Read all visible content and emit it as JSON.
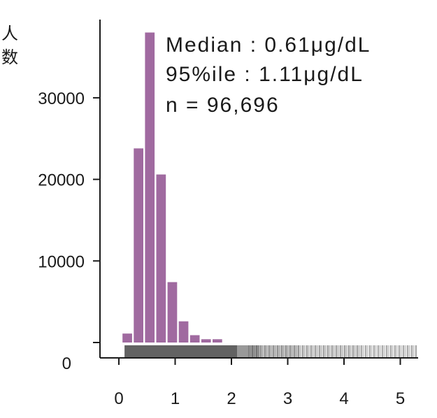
{
  "chart_data": {
    "type": "bar",
    "ylabel_lines": [
      "人",
      "数"
    ],
    "xlabel": "",
    "title": "",
    "x_ticks": [
      0,
      1,
      2,
      3,
      4,
      5
    ],
    "y_ticks": [
      0,
      10000,
      20000,
      30000
    ],
    "xlim": [
      -0.05,
      5.3
    ],
    "ylim": [
      -2000,
      40000
    ],
    "bar_width": 0.2,
    "bar_color": "#a06aa0",
    "bins": [
      {
        "x": 0.15,
        "value": 1100
      },
      {
        "x": 0.35,
        "value": 23800
      },
      {
        "x": 0.55,
        "value": 38000
      },
      {
        "x": 0.75,
        "value": 20600
      },
      {
        "x": 0.95,
        "value": 7400
      },
      {
        "x": 1.15,
        "value": 2600
      },
      {
        "x": 1.35,
        "value": 900
      },
      {
        "x": 1.55,
        "value": 400
      },
      {
        "x": 1.75,
        "value": 400
      }
    ],
    "annotations": [
      "Median : 0.61μg/dL",
      "95%ile : 1.11μg/dL",
      "n = 96,696"
    ],
    "rug": {
      "color": "#555555",
      "from": 0.1,
      "to": 5.3,
      "segments": [
        {
          "from": 0.1,
          "to": 2.1,
          "opacity": 0.92
        },
        {
          "from": 2.1,
          "to": 2.5,
          "opacity": 0.6
        },
        {
          "from": 2.5,
          "to": 3.2,
          "opacity": 0.35
        },
        {
          "from": 3.2,
          "to": 4.3,
          "opacity": 0.22
        },
        {
          "from": 4.3,
          "to": 5.3,
          "opacity": 0.15
        }
      ]
    }
  }
}
